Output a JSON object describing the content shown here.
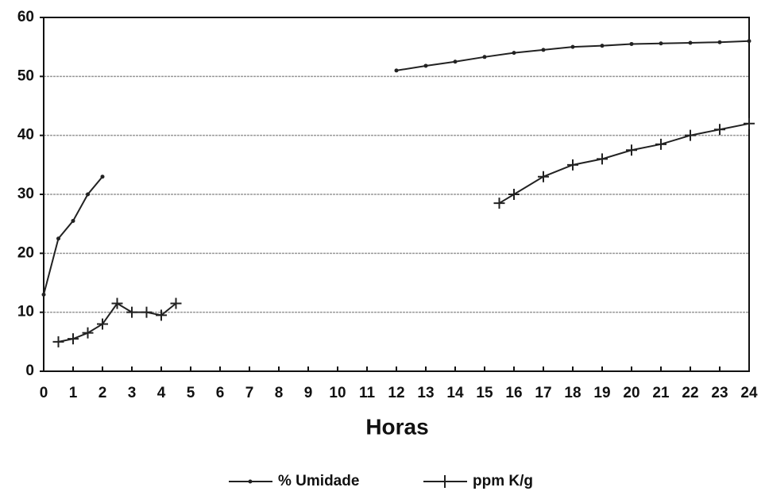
{
  "chart_data": {
    "type": "line",
    "x_label": "Horas",
    "xlim": [
      0,
      24
    ],
    "ylim": [
      0,
      60
    ],
    "xticks": [
      0,
      1,
      2,
      3,
      4,
      5,
      6,
      7,
      8,
      9,
      10,
      11,
      12,
      13,
      14,
      15,
      16,
      17,
      18,
      19,
      20,
      21,
      22,
      23,
      24
    ],
    "yticks": [
      0,
      10,
      20,
      30,
      40,
      50,
      60
    ],
    "grid": true,
    "legend": "bottom",
    "series": [
      {
        "name": "% Umidade",
        "color": "#222",
        "marker": "dot",
        "x": [
          0,
          0.5,
          1,
          1.5,
          2,
          7,
          12,
          13,
          14,
          15,
          16,
          17,
          18,
          19,
          20,
          21,
          22,
          23,
          24
        ],
        "values": [
          13,
          22.5,
          25.5,
          30,
          33,
          null,
          51,
          51.8,
          52.5,
          53.3,
          54,
          54.5,
          55,
          55.2,
          55.5,
          55.6,
          55.7,
          55.8,
          56
        ]
      },
      {
        "name": "ppm K/g",
        "color": "#222",
        "marker": "plus",
        "x": [
          0.5,
          1,
          1.5,
          2,
          2.5,
          3,
          3.5,
          4,
          4.5,
          10,
          15.5,
          16,
          17,
          18,
          19,
          20,
          21,
          22,
          23,
          24
        ],
        "values": [
          5,
          5.5,
          6.5,
          8,
          11.5,
          10,
          10,
          9.5,
          11.5,
          null,
          28.5,
          30,
          33,
          35,
          36,
          37.5,
          38.5,
          40,
          41,
          42
        ]
      }
    ]
  }
}
